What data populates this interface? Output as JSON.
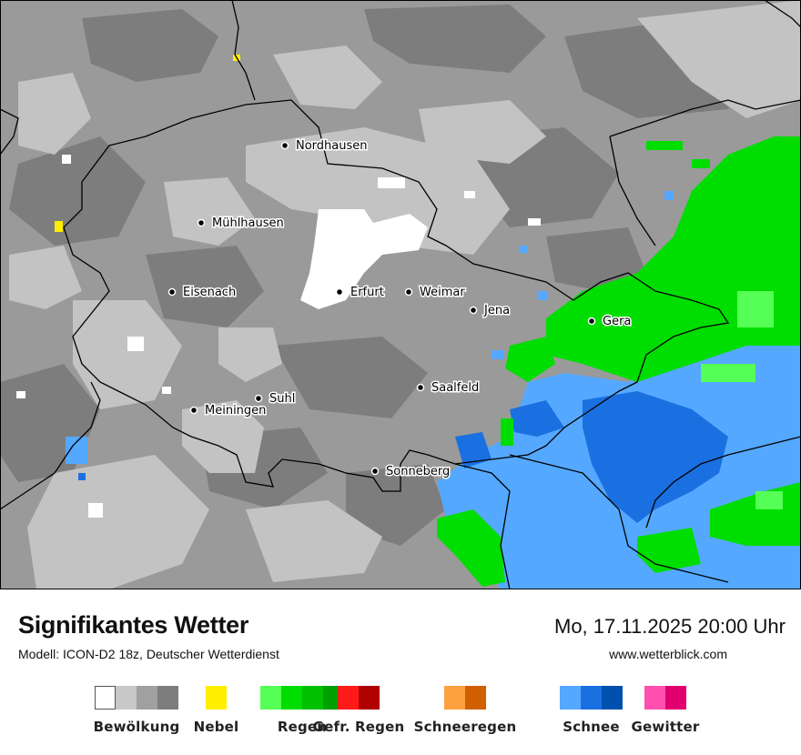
{
  "header": {
    "title": "Signifikantes Wetter",
    "model": "Modell: ICON-D2 18z, Deutscher Wetterdienst",
    "datetime": "Mo, 17.11.2025 20:00 Uhr",
    "website": "www.wetterblick.com"
  },
  "cities": [
    {
      "name": "Nordhausen"
    },
    {
      "name": "Mühlhausen"
    },
    {
      "name": "Eisenach"
    },
    {
      "name": "Erfurt"
    },
    {
      "name": "Weimar"
    },
    {
      "name": "Jena"
    },
    {
      "name": "Gera"
    },
    {
      "name": "Suhl"
    },
    {
      "name": "Meiningen"
    },
    {
      "name": "Saalfeld"
    },
    {
      "name": "Sonneberg"
    }
  ],
  "legend": [
    {
      "label": "Bewölkung",
      "colors": [
        "#ffffff",
        "#c8c8c8",
        "#a0a0a0",
        "#7d7d7d"
      ]
    },
    {
      "label": "Nebel",
      "colors": [
        "#ffee00"
      ]
    },
    {
      "label": "Regen",
      "colors": [
        "#55ff55",
        "#00dd00",
        "#00c000",
        "#00a000"
      ]
    },
    {
      "label": "Gefr. Regen",
      "colors": [
        "#ff1a1a",
        "#b00000"
      ]
    },
    {
      "label": "Schneeregen",
      "colors": [
        "#ffa040",
        "#d06000"
      ]
    },
    {
      "label": "Schnee",
      "colors": [
        "#55a8ff",
        "#1a70e0",
        "#0050b0"
      ]
    },
    {
      "label": "Gewitter",
      "colors": [
        "#ff50b0",
        "#e00070"
      ]
    }
  ]
}
